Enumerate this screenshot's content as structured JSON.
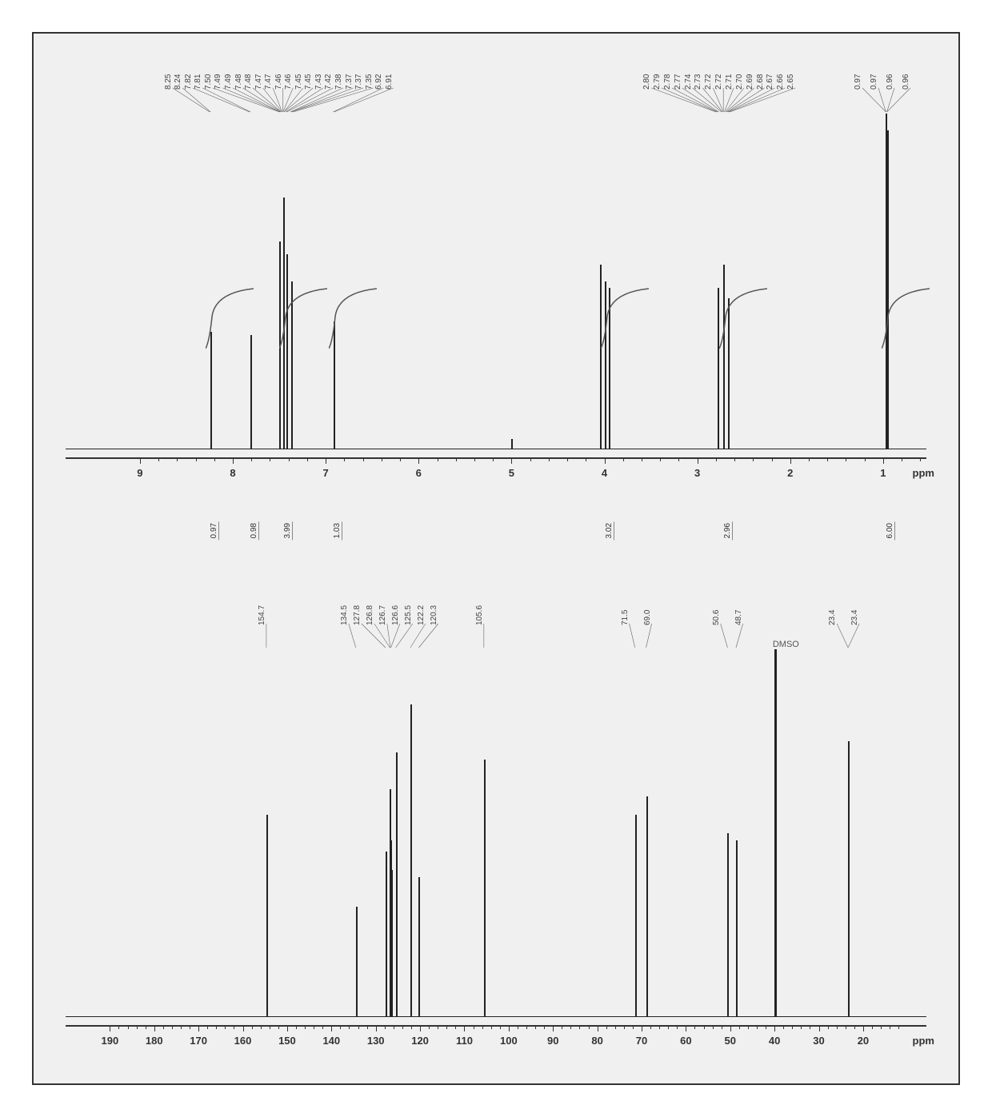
{
  "colors": {
    "background": "#f0f0f0",
    "border": "#333333",
    "peak": "#222222",
    "text": "#444444",
    "axis": "#333333"
  },
  "typography": {
    "peak_label_fontsize": 10,
    "axis_label_fontsize": 13,
    "axis_fontweight": "bold"
  },
  "h1": {
    "type": "nmr-1h",
    "xlim_ppm": [
      0.5,
      9.8
    ],
    "axis_ticks": [
      9,
      8,
      7,
      6,
      5,
      4,
      3,
      2,
      1
    ],
    "axis_unit": "ppm",
    "peak_labels": [
      "8.25",
      "8.24",
      "7.82",
      "7.81",
      "7.50",
      "7.49",
      "7.49",
      "7.48",
      "7.48",
      "7.47",
      "7.47",
      "7.46",
      "7.46",
      "7.45",
      "7.45",
      "7.43",
      "7.42",
      "7.38",
      "7.37",
      "7.37",
      "7.35",
      "6.92",
      "6.91",
      "2.80",
      "2.79",
      "2.78",
      "2.77",
      "2.74",
      "2.73",
      "2.72",
      "2.72",
      "2.71",
      "2.70",
      "2.69",
      "2.68",
      "2.67",
      "2.66",
      "2.65",
      "0.97",
      "0.97",
      "0.96",
      "0.96"
    ],
    "peak_label_clusters": [
      {
        "from_ppm": 8.25,
        "to_ppm": 6.91,
        "count": 23,
        "apex_ppm": 7.46
      },
      {
        "from_ppm": 2.8,
        "to_ppm": 2.65,
        "count": 15,
        "apex_ppm": 2.72
      },
      {
        "from_ppm": 0.97,
        "to_ppm": 0.96,
        "count": 4,
        "apex_ppm": 0.965
      }
    ],
    "peaks": [
      {
        "ppm": 8.245,
        "h": 0.35
      },
      {
        "ppm": 7.815,
        "h": 0.34
      },
      {
        "ppm": 7.5,
        "h": 0.62
      },
      {
        "ppm": 7.46,
        "h": 0.75
      },
      {
        "ppm": 7.42,
        "h": 0.58
      },
      {
        "ppm": 7.37,
        "h": 0.5
      },
      {
        "ppm": 6.915,
        "h": 0.38
      },
      {
        "ppm": 5.0,
        "h": 0.03
      },
      {
        "ppm": 4.05,
        "h": 0.55
      },
      {
        "ppm": 4.0,
        "h": 0.5
      },
      {
        "ppm": 3.95,
        "h": 0.48
      },
      {
        "ppm": 2.78,
        "h": 0.48
      },
      {
        "ppm": 2.72,
        "h": 0.55
      },
      {
        "ppm": 2.67,
        "h": 0.45
      },
      {
        "ppm": 0.97,
        "h": 1.0
      },
      {
        "ppm": 0.96,
        "h": 0.95
      }
    ],
    "integrations": [
      {
        "ppm": 8.25,
        "value": "0.97"
      },
      {
        "ppm": 7.82,
        "value": "0.98"
      },
      {
        "ppm": 7.46,
        "value": "3.99"
      },
      {
        "ppm": 6.92,
        "value": "1.03"
      },
      {
        "ppm": 4.0,
        "value": "3.02"
      },
      {
        "ppm": 2.72,
        "value": "2.96"
      },
      {
        "ppm": 0.97,
        "value": "6.00"
      }
    ]
  },
  "c13": {
    "type": "nmr-13c",
    "xlim_ppm": [
      5,
      200
    ],
    "axis_ticks": [
      190,
      180,
      170,
      160,
      150,
      140,
      130,
      120,
      110,
      100,
      90,
      80,
      70,
      60,
      50,
      40,
      30,
      20
    ],
    "axis_unit": "ppm",
    "peak_labels": [
      "154.7",
      "134.5",
      "127.8",
      "126.8",
      "126.7",
      "126.6",
      "125.5",
      "122.2",
      "120.3",
      "105.6",
      "71.5",
      "69.0",
      "50.6",
      "48.7",
      "23.4",
      "23.4"
    ],
    "peak_label_groups": [
      {
        "labels": [
          "154.7"
        ],
        "apex_ppm": 154.7
      },
      {
        "labels": [
          "134.5",
          "127.8",
          "126.8",
          "126.7",
          "126.6",
          "125.5",
          "122.2",
          "120.3"
        ],
        "apex_ppm": 126.0
      },
      {
        "labels": [
          "105.6"
        ],
        "apex_ppm": 105.6
      },
      {
        "labels": [
          "71.5",
          "69.0"
        ],
        "apex_ppm": 70.25
      },
      {
        "labels": [
          "50.6",
          "48.7"
        ],
        "apex_ppm": 49.65
      },
      {
        "labels": [
          "23.4",
          "23.4"
        ],
        "apex_ppm": 23.4
      }
    ],
    "peaks": [
      {
        "ppm": 154.7,
        "h": 0.55
      },
      {
        "ppm": 134.5,
        "h": 0.3
      },
      {
        "ppm": 127.8,
        "h": 0.45
      },
      {
        "ppm": 126.8,
        "h": 0.62
      },
      {
        "ppm": 126.7,
        "h": 0.48
      },
      {
        "ppm": 126.6,
        "h": 0.4
      },
      {
        "ppm": 125.5,
        "h": 0.72
      },
      {
        "ppm": 122.2,
        "h": 0.85
      },
      {
        "ppm": 120.3,
        "h": 0.38
      },
      {
        "ppm": 105.6,
        "h": 0.7
      },
      {
        "ppm": 71.5,
        "h": 0.55
      },
      {
        "ppm": 69.0,
        "h": 0.6
      },
      {
        "ppm": 50.6,
        "h": 0.5
      },
      {
        "ppm": 48.7,
        "h": 0.48
      },
      {
        "ppm": 40.0,
        "h": 1.0
      },
      {
        "ppm": 23.4,
        "h": 0.75
      }
    ],
    "solvent_label": {
      "text": "DMSO",
      "ppm": 41.5
    }
  }
}
